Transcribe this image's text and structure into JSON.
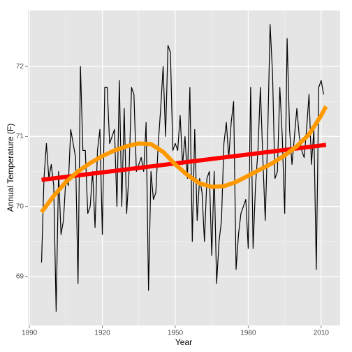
{
  "chart_data": {
    "type": "line",
    "xlabel": "Year",
    "ylabel": "Annual Temperature (F)",
    "xlim": [
      1889.4,
      2017.8
    ],
    "ylim": [
      68.3,
      72.8
    ],
    "xticks": [
      1890,
      1920,
      1950,
      1980,
      2010
    ],
    "yticks": [
      69,
      70,
      71,
      72
    ],
    "grid": true,
    "series": [
      {
        "color": "#000000",
        "width": 1.2,
        "x": [
          1895,
          1896,
          1897,
          1898,
          1899,
          1900,
          1901,
          1902,
          1903,
          1904,
          1905,
          1906,
          1907,
          1908,
          1909,
          1910,
          1911,
          1912,
          1913,
          1914,
          1915,
          1916,
          1917,
          1918,
          1919,
          1920,
          1921,
          1922,
          1923,
          1924,
          1925,
          1926,
          1927,
          1928,
          1929,
          1930,
          1931,
          1932,
          1933,
          1934,
          1935,
          1936,
          1937,
          1938,
          1939,
          1940,
          1941,
          1942,
          1943,
          1944,
          1945,
          1946,
          1947,
          1948,
          1949,
          1950,
          1951,
          1952,
          1953,
          1954,
          1955,
          1956,
          1957,
          1958,
          1959,
          1960,
          1961,
          1962,
          1963,
          1964,
          1965,
          1966,
          1967,
          1968,
          1969,
          1970,
          1971,
          1972,
          1973,
          1974,
          1975,
          1976,
          1977,
          1978,
          1979,
          1980,
          1981,
          1982,
          1983,
          1984,
          1985,
          1986,
          1987,
          1988,
          1989,
          1990,
          1991,
          1992,
          1993,
          1994,
          1995,
          1996,
          1997,
          1998,
          1999,
          2000,
          2001,
          2002,
          2003,
          2004,
          2005,
          2006,
          2007,
          2008,
          2009,
          2010,
          2011
        ],
        "values": [
          69.2,
          70.4,
          70.9,
          70.4,
          70.6,
          70.3,
          68.5,
          70.5,
          69.6,
          69.8,
          70.4,
          70.3,
          71.1,
          70.9,
          70.7,
          68.9,
          72.0,
          70.8,
          70.8,
          69.9,
          70.0,
          70.5,
          69.7,
          70.8,
          71.1,
          69.6,
          71.7,
          71.7,
          70.9,
          71.0,
          71.1,
          70.0,
          71.8,
          70.0,
          71.4,
          69.9,
          70.5,
          71.7,
          71.6,
          70.5,
          70.6,
          70.7,
          70.5,
          71.2,
          68.8,
          70.5,
          70.1,
          70.2,
          70.9,
          71.4,
          72.0,
          71.0,
          72.3,
          72.2,
          70.8,
          70.9,
          70.8,
          71.3,
          70.6,
          71.0,
          70.4,
          71.7,
          69.5,
          71.1,
          69.8,
          70.4,
          70.2,
          69.5,
          70.4,
          70.5,
          69.3,
          70.5,
          68.9,
          69.5,
          69.8,
          70.9,
          71.2,
          70.7,
          71.2,
          71.5,
          69.1,
          69.6,
          69.9,
          70.0,
          70.1,
          69.4,
          71.7,
          69.4,
          70.3,
          70.8,
          71.7,
          70.7,
          69.8,
          71.0,
          72.6,
          71.9,
          70.4,
          70.5,
          71.7,
          71.0,
          69.9,
          72.4,
          71.1,
          70.6,
          71.0,
          71.4,
          71.0,
          70.8,
          70.7,
          71.1,
          71.6,
          70.6,
          71.1,
          69.1,
          71.7,
          71.8,
          71.6
        ]
      },
      {
        "color": "#ff0000",
        "width": 6,
        "x": [
          1895,
          2012
        ],
        "values": [
          70.38,
          70.88
        ]
      },
      {
        "color": "#ff9900",
        "width": 6,
        "x": [
          1895,
          1900,
          1905,
          1910,
          1915,
          1920,
          1925,
          1930,
          1935,
          1940,
          1945,
          1950,
          1955,
          1960,
          1965,
          1970,
          1975,
          1980,
          1985,
          1990,
          1995,
          2000,
          2005,
          2010,
          2012
        ],
        "values": [
          69.92,
          70.15,
          70.35,
          70.5,
          70.62,
          70.72,
          70.8,
          70.86,
          70.9,
          70.89,
          70.78,
          70.6,
          70.45,
          70.33,
          70.28,
          70.29,
          70.35,
          70.44,
          70.53,
          70.62,
          70.73,
          70.86,
          71.03,
          71.3,
          71.43
        ]
      }
    ]
  }
}
